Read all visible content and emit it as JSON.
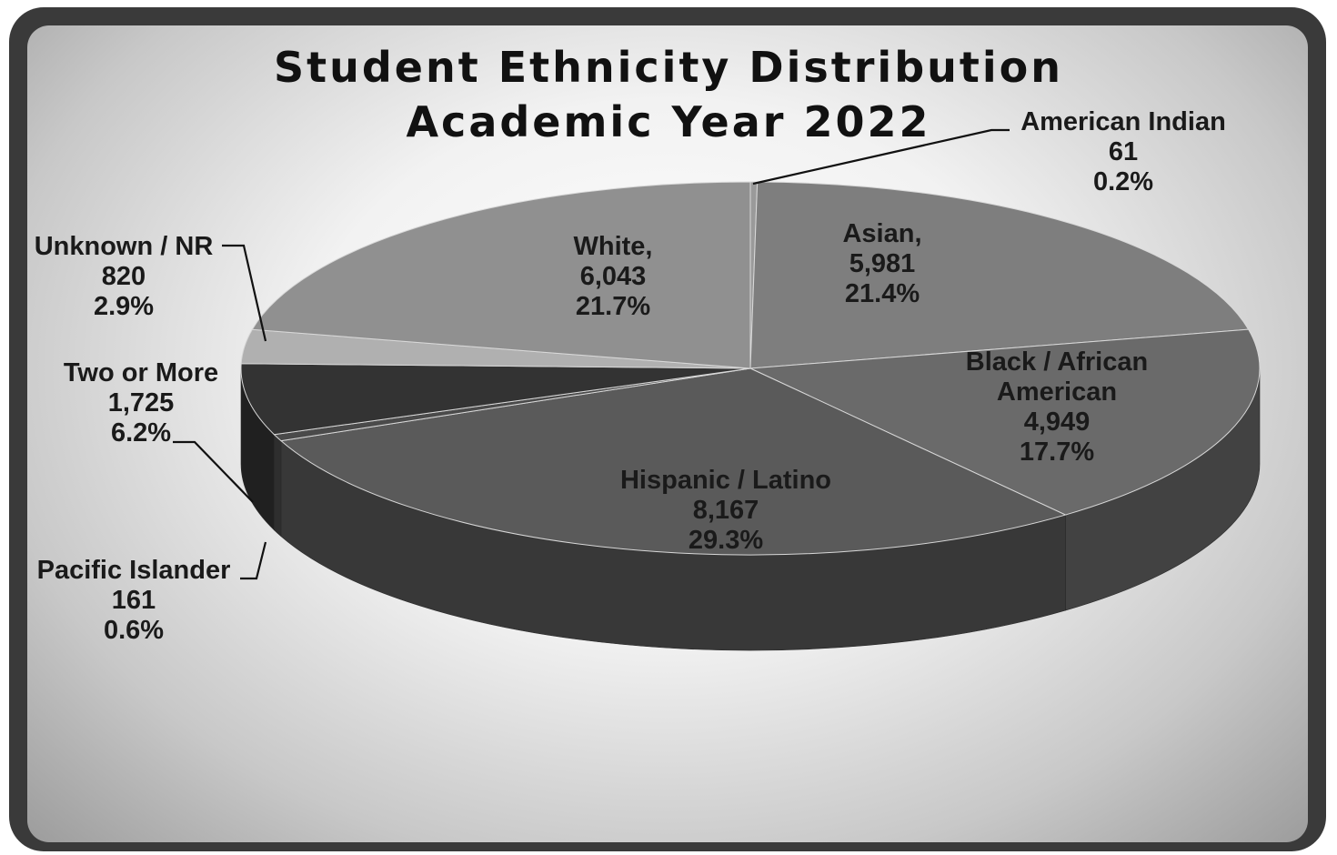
{
  "chart_data": {
    "type": "pie",
    "title": "Student Ethnicity Distribution",
    "subtitle": "Academic Year 2022",
    "slices": [
      {
        "key": "american_indian",
        "label": "American Indian",
        "label_parts": [
          "American Indian"
        ],
        "value_text": "61",
        "value": 61,
        "percent_text": "0.2%",
        "percent": 0.2,
        "color": "#9a9a9a"
      },
      {
        "key": "asian",
        "label": "Asian,",
        "label_parts": [
          "Asian,"
        ],
        "value_text": "5,981",
        "value": 5981,
        "percent_text": "21.4%",
        "percent": 21.4,
        "color": "#7e7e7e"
      },
      {
        "key": "black",
        "label": "Black / African American",
        "label_parts": [
          "Black / African",
          "American"
        ],
        "value_text": "4,949",
        "value": 4949,
        "percent_text": "17.7%",
        "percent": 17.7,
        "color": "#6a6a6a"
      },
      {
        "key": "hispanic",
        "label": "Hispanic / Latino",
        "label_parts": [
          "Hispanic / Latino"
        ],
        "value_text": "8,167",
        "value": 8167,
        "percent_text": "29.3%",
        "percent": 29.3,
        "color": "#5a5a5a"
      },
      {
        "key": "pacific",
        "label": "Pacific Islander",
        "label_parts": [
          "Pacific Islander"
        ],
        "value_text": "161",
        "value": 161,
        "percent_text": "0.6%",
        "percent": 0.6,
        "color": "#4a4a4a"
      },
      {
        "key": "two_more",
        "label": "Two or More",
        "label_parts": [
          "Two or More"
        ],
        "value_text": "1,725",
        "value": 1725,
        "percent_text": "6.2%",
        "percent": 6.2,
        "color": "#333333"
      },
      {
        "key": "unknown",
        "label": "Unknown / NR",
        "label_parts": [
          "Unknown / NR"
        ],
        "value_text": "820",
        "value": 820,
        "percent_text": "2.9%",
        "percent": 2.9,
        "color": "#b0b0b0"
      },
      {
        "key": "white",
        "label": "White,",
        "label_parts": [
          "White,"
        ],
        "value_text": "6,043",
        "value": 6043,
        "percent_text": "21.7%",
        "percent": 21.7,
        "color": "#909090"
      }
    ],
    "style": "3d-exploded-none",
    "legend": "none",
    "colors": {
      "background_frame": "#3a3a3a"
    }
  }
}
